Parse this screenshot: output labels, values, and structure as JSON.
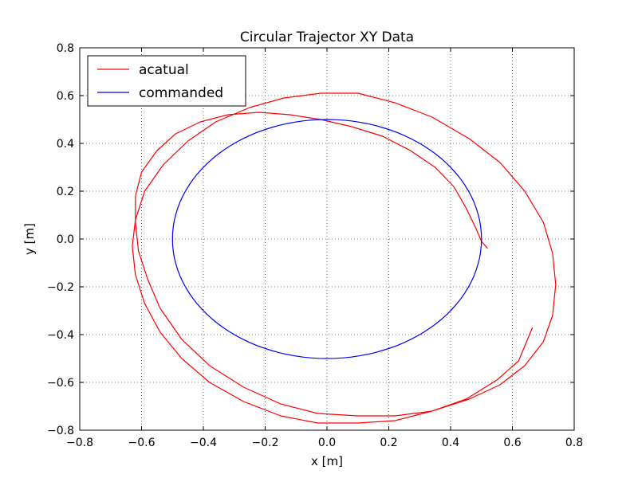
{
  "chart_data": {
    "type": "line",
    "title": "Circular Trajector XY Data",
    "xlabel": "x [m]",
    "ylabel": "y [m]",
    "xlim": [
      -0.8,
      0.8
    ],
    "ylim": [
      -0.8,
      0.8
    ],
    "xticks": [
      -0.8,
      -0.6,
      -0.4,
      -0.2,
      0.0,
      0.2,
      0.4,
      0.6,
      0.8
    ],
    "yticks": [
      -0.8,
      -0.6,
      -0.4,
      -0.2,
      0.0,
      0.2,
      0.4,
      0.6,
      0.8
    ],
    "xtick_labels": [
      "−0.8",
      "−0.6",
      "−0.4",
      "−0.2",
      "0.0",
      "0.2",
      "0.4",
      "0.6",
      "0.8"
    ],
    "ytick_labels": [
      "−0.8",
      "−0.6",
      "−0.4",
      "−0.2",
      "0.0",
      "0.2",
      "0.4",
      "0.6",
      "0.8"
    ],
    "grid": true,
    "legend_position": "top-left",
    "series": [
      {
        "name": "acatual",
        "color": "#ff0000",
        "x": [
          0.52,
          0.5,
          0.48,
          0.45,
          0.41,
          0.35,
          0.27,
          0.18,
          0.08,
          -0.02,
          -0.12,
          -0.22,
          -0.32,
          -0.41,
          -0.49,
          -0.55,
          -0.6,
          -0.62,
          -0.62,
          -0.61,
          -0.58,
          -0.54,
          -0.47,
          -0.38,
          -0.27,
          -0.15,
          -0.03,
          0.1,
          0.22,
          0.34,
          0.46,
          0.56,
          0.64,
          0.7,
          0.73,
          0.74,
          0.73,
          0.7,
          0.64,
          0.56,
          0.46,
          0.34,
          0.22,
          0.1,
          -0.02,
          -0.14,
          -0.25,
          -0.36,
          -0.45,
          -0.53,
          -0.59,
          -0.62,
          -0.63,
          -0.62,
          -0.59,
          -0.54,
          -0.47,
          -0.38,
          -0.27,
          -0.15,
          -0.03,
          0.1,
          0.22,
          0.34,
          0.45,
          0.55,
          0.62,
          0.665
        ],
        "y": [
          -0.04,
          -0.01,
          0.05,
          0.13,
          0.22,
          0.3,
          0.37,
          0.43,
          0.47,
          0.5,
          0.52,
          0.53,
          0.52,
          0.49,
          0.44,
          0.37,
          0.28,
          0.18,
          0.07,
          -0.05,
          -0.17,
          -0.29,
          -0.42,
          -0.53,
          -0.62,
          -0.69,
          -0.73,
          -0.74,
          -0.74,
          -0.72,
          -0.67,
          -0.61,
          -0.53,
          -0.43,
          -0.32,
          -0.19,
          -0.06,
          0.07,
          0.2,
          0.32,
          0.42,
          0.51,
          0.57,
          0.61,
          0.61,
          0.59,
          0.55,
          0.49,
          0.41,
          0.31,
          0.2,
          0.08,
          -0.03,
          -0.15,
          -0.27,
          -0.39,
          -0.5,
          -0.6,
          -0.68,
          -0.74,
          -0.77,
          -0.77,
          -0.76,
          -0.72,
          -0.67,
          -0.59,
          -0.51,
          -0.37
        ]
      },
      {
        "name": "commanded",
        "color": "#0000ff",
        "shape": "circle",
        "center": [
          0.0,
          0.0
        ],
        "radius": 0.5
      }
    ]
  }
}
